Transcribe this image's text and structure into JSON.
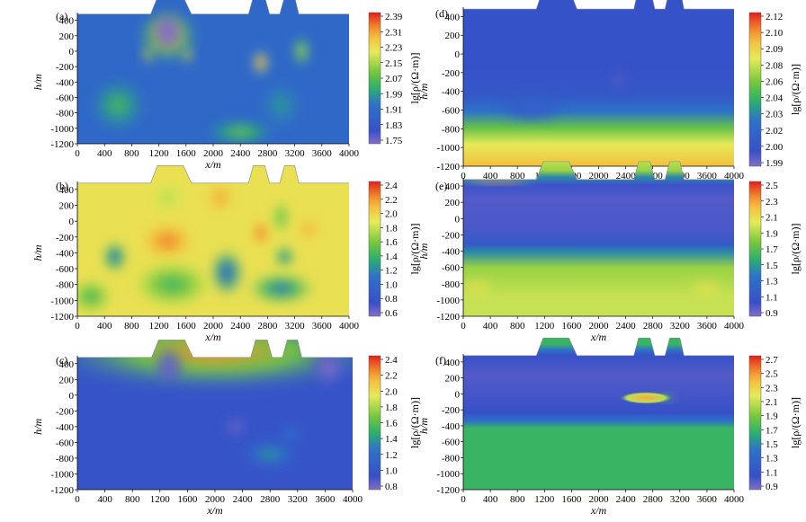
{
  "chart_data": [
    {
      "type": "heatmap",
      "panel_label": "(a)",
      "xlabel": "x/m",
      "ylabel": "h/m",
      "xlim": [
        0,
        4000
      ],
      "ylim": [
        -1200,
        500
      ],
      "xticks": [
        "0",
        "400",
        "800",
        "1200",
        "1600",
        "2000",
        "2400",
        "2800",
        "3200",
        "3600",
        "4000"
      ],
      "yticks": [
        "400",
        "200",
        "0",
        "-200",
        "-400",
        "-600",
        "-800",
        "-1000",
        "-1200"
      ],
      "colorbar_label": "lg[ρ/(Ω·m)]",
      "colorbar_ticks": [
        "2.39",
        "2.31",
        "2.23",
        "2.15",
        "2.07",
        "1.99",
        "1.91",
        "1.83",
        "1.75"
      ],
      "crange": [
        1.75,
        2.39
      ],
      "background": 1.9,
      "terrain": [
        [
          0,
          480
        ],
        [
          1080,
          480
        ],
        [
          1180,
          700
        ],
        [
          1560,
          700
        ],
        [
          1680,
          480
        ],
        [
          2520,
          480
        ],
        [
          2590,
          700
        ],
        [
          2760,
          700
        ],
        [
          2830,
          480
        ],
        [
          2980,
          480
        ],
        [
          3050,
          700
        ],
        [
          3200,
          700
        ],
        [
          3260,
          480
        ],
        [
          4000,
          480
        ]
      ],
      "anomalies": [
        {
          "x": 1330,
          "y": 200,
          "sx": 460,
          "sy": 380,
          "v": 0.38
        },
        {
          "x": 1330,
          "y": 250,
          "sx": 260,
          "sy": 280,
          "v": -0.4
        },
        {
          "x": 1040,
          "y": -40,
          "sx": 90,
          "sy": 140,
          "v": 0.42
        },
        {
          "x": 1620,
          "y": -40,
          "sx": 90,
          "sy": 140,
          "v": 0.42
        },
        {
          "x": 2700,
          "y": -150,
          "sx": 130,
          "sy": 170,
          "v": 0.55
        },
        {
          "x": 3300,
          "y": 0,
          "sx": 140,
          "sy": 220,
          "v": 0.3
        },
        {
          "x": 2400,
          "y": -1050,
          "sx": 550,
          "sy": 180,
          "v": 0.2
        },
        {
          "x": 600,
          "y": -700,
          "sx": 450,
          "sy": 380,
          "v": 0.16
        },
        {
          "x": 3000,
          "y": -700,
          "sx": 350,
          "sy": 350,
          "v": 0.1
        }
      ]
    },
    {
      "type": "heatmap",
      "panel_label": "(b)",
      "xlabel": "x/m",
      "ylabel": "h/m",
      "xlim": [
        0,
        4000
      ],
      "ylim": [
        -1200,
        500
      ],
      "xticks": [
        "0",
        "400",
        "800",
        "1200",
        "1600",
        "2000",
        "2400",
        "2800",
        "3200",
        "3600",
        "4000"
      ],
      "yticks": [
        "400",
        "200",
        "0",
        "-200",
        "-400",
        "-600",
        "-800",
        "-1000",
        "-1200"
      ],
      "colorbar_label": "lg[ρ/(Ω·m)]",
      "colorbar_ticks": [
        "2.4",
        "2.2",
        "2.0",
        "1.8",
        "1.6",
        "1.4",
        "1.2",
        "1.0",
        "0.8",
        "0.6"
      ],
      "crange": [
        0.6,
        2.45
      ],
      "background": 1.95,
      "terrain": [
        [
          0,
          480
        ],
        [
          1080,
          480
        ],
        [
          1180,
          700
        ],
        [
          1560,
          700
        ],
        [
          1680,
          480
        ],
        [
          2520,
          480
        ],
        [
          2590,
          700
        ],
        [
          2760,
          700
        ],
        [
          2830,
          480
        ],
        [
          2980,
          480
        ],
        [
          3050,
          700
        ],
        [
          3200,
          700
        ],
        [
          3260,
          480
        ],
        [
          4000,
          480
        ]
      ],
      "anomalies": [
        {
          "x": 1330,
          "y": -250,
          "sx": 420,
          "sy": 250,
          "v": 0.35
        },
        {
          "x": 1330,
          "y": 300,
          "sx": 280,
          "sy": 230,
          "v": -0.2
        },
        {
          "x": 2100,
          "y": 300,
          "sx": 220,
          "sy": 220,
          "v": 0.25
        },
        {
          "x": 2700,
          "y": -150,
          "sx": 140,
          "sy": 180,
          "v": 0.4
        },
        {
          "x": 3400,
          "y": -100,
          "sx": 200,
          "sy": 180,
          "v": 0.2
        },
        {
          "x": 550,
          "y": -450,
          "sx": 200,
          "sy": 220,
          "v": -1.1
        },
        {
          "x": 2200,
          "y": -650,
          "sx": 280,
          "sy": 330,
          "v": -1.2
        },
        {
          "x": 3050,
          "y": -450,
          "sx": 170,
          "sy": 150,
          "v": -1.0
        },
        {
          "x": 3000,
          "y": -850,
          "sx": 550,
          "sy": 230,
          "v": -0.9
        },
        {
          "x": 3000,
          "y": 50,
          "sx": 150,
          "sy": 250,
          "v": -0.5
        },
        {
          "x": 1400,
          "y": -800,
          "sx": 650,
          "sy": 330,
          "v": -0.55
        },
        {
          "x": 200,
          "y": -950,
          "sx": 350,
          "sy": 250,
          "v": -0.55
        }
      ]
    },
    {
      "type": "heatmap",
      "panel_label": "(c)",
      "xlabel": "x/m",
      "ylabel": "h/m",
      "xlim": [
        0,
        4000
      ],
      "ylim": [
        -1200,
        500
      ],
      "xticks": [
        "0",
        "400",
        "800",
        "1200",
        "1600",
        "2000",
        "2400",
        "2800",
        "3200",
        "3600",
        "4000"
      ],
      "yticks": [
        "400",
        "200",
        "0",
        "-200",
        "-400",
        "-600",
        "-800",
        "-1000",
        "-1200"
      ],
      "colorbar_label": "lg[ρ/(Ω·m)]",
      "colorbar_ticks": [
        "2.4",
        "2.2",
        "2.0",
        "1.8",
        "1.6",
        "1.4",
        "1.2",
        "1.0",
        "0.8"
      ],
      "crange": [
        0.8,
        2.45
      ],
      "background": 1.0,
      "terrain": [
        [
          0,
          480
        ],
        [
          1080,
          480
        ],
        [
          1180,
          700
        ],
        [
          1560,
          700
        ],
        [
          1680,
          480
        ],
        [
          2520,
          480
        ],
        [
          2590,
          700
        ],
        [
          2760,
          700
        ],
        [
          2830,
          480
        ],
        [
          2980,
          480
        ],
        [
          3050,
          700
        ],
        [
          3200,
          700
        ],
        [
          3260,
          480
        ],
        [
          4000,
          480
        ]
      ],
      "anomalies": [
        {
          "x": 2000,
          "y": 550,
          "sx": 2600,
          "sy": 520,
          "v": 1.25
        },
        {
          "x": 1330,
          "y": 350,
          "sx": 220,
          "sy": 260,
          "v": -0.2
        },
        {
          "x": 3650,
          "y": 350,
          "sx": 260,
          "sy": 280,
          "v": -0.25
        },
        {
          "x": 2800,
          "y": -750,
          "sx": 450,
          "sy": 200,
          "v": 0.45
        },
        {
          "x": 3100,
          "y": -500,
          "sx": 200,
          "sy": 150,
          "v": 0.3
        },
        {
          "x": 2300,
          "y": -400,
          "sx": 200,
          "sy": 120,
          "v": -0.2
        }
      ]
    },
    {
      "type": "heatmap",
      "panel_label": "(d)",
      "xlabel": "x/m",
      "ylabel": "h/m",
      "xlim": [
        0,
        4000
      ],
      "ylim": [
        -1200,
        500
      ],
      "xticks": [
        "0",
        "400",
        "800",
        "1200",
        "1600",
        "2000",
        "2400",
        "2800",
        "3200",
        "3600",
        "4000"
      ],
      "yticks": [
        "400",
        "200",
        "0",
        "-200",
        "-400",
        "-600",
        "-800",
        "-1000",
        "-1200"
      ],
      "colorbar_label": "lg[ρ/(Ω·m)]",
      "colorbar_ticks": [
        "2.12",
        "2.10",
        "2.09",
        "2.08",
        "2.06",
        "2.04",
        "2.03",
        "2.02",
        "2.00",
        "1.99"
      ],
      "crange": [
        1.99,
        2.125
      ],
      "background": 2.005,
      "layered": [
        [
          -1200,
          2.1
        ],
        [
          -1000,
          2.085
        ],
        [
          -850,
          2.06
        ],
        [
          -700,
          2.03
        ],
        [
          -550,
          2.01
        ],
        [
          -300,
          2.005
        ],
        [
          500,
          2.005
        ]
      ],
      "terrain": [
        [
          0,
          480
        ],
        [
          1080,
          480
        ],
        [
          1180,
          700
        ],
        [
          1560,
          700
        ],
        [
          1680,
          480
        ],
        [
          2520,
          480
        ],
        [
          2590,
          700
        ],
        [
          2760,
          700
        ],
        [
          2830,
          480
        ],
        [
          2980,
          480
        ],
        [
          3050,
          700
        ],
        [
          3200,
          700
        ],
        [
          3260,
          480
        ],
        [
          4000,
          480
        ]
      ],
      "anomalies": [
        {
          "x": 1000,
          "y": -550,
          "sx": 500,
          "sy": 180,
          "v": 0.015
        },
        {
          "x": 2300,
          "y": -280,
          "sx": 120,
          "sy": 120,
          "v": -0.01
        }
      ]
    },
    {
      "type": "heatmap",
      "panel_label": "(e)",
      "xlabel": "x/m",
      "ylabel": "h/m",
      "xlim": [
        0,
        4000
      ],
      "ylim": [
        -1200,
        500
      ],
      "xticks": [
        "0",
        "400",
        "800",
        "1200",
        "1600",
        "2000",
        "2400",
        "2800",
        "3200",
        "3600",
        "4000"
      ],
      "yticks": [
        "400",
        "200",
        "0",
        "-200",
        "-400",
        "-600",
        "-800",
        "-1000",
        "-1200"
      ],
      "colorbar_label": "lg[ρ/(Ω·m)]",
      "colorbar_ticks": [
        "2.5",
        "2.3",
        "2.1",
        "1.9",
        "1.7",
        "1.5",
        "1.3",
        "1.1",
        "0.9"
      ],
      "crange": [
        0.9,
        2.5
      ],
      "background": 2.0,
      "layered": [
        [
          -1200,
          1.95
        ],
        [
          -1000,
          1.95
        ],
        [
          -700,
          1.85
        ],
        [
          -540,
          1.45
        ],
        [
          -460,
          1.15
        ],
        [
          -300,
          1.02
        ],
        [
          0,
          1.0
        ],
        [
          150,
          1.05
        ],
        [
          230,
          1.45
        ],
        [
          300,
          1.85
        ],
        [
          480,
          2.0
        ],
        [
          500,
          2.0
        ]
      ],
      "terrain": [
        [
          0,
          480
        ],
        [
          1080,
          480
        ],
        [
          1180,
          700
        ],
        [
          1560,
          700
        ],
        [
          1680,
          480
        ],
        [
          2520,
          480
        ],
        [
          2590,
          700
        ],
        [
          2760,
          700
        ],
        [
          2830,
          480
        ],
        [
          2980,
          480
        ],
        [
          3050,
          700
        ],
        [
          3200,
          700
        ],
        [
          3260,
          480
        ],
        [
          4000,
          480
        ]
      ],
      "anomalies": [
        {
          "x": 500,
          "y": 480,
          "sx": 600,
          "sy": 40,
          "v": 0.3
        },
        {
          "x": 3600,
          "y": -850,
          "sx": 250,
          "sy": 80,
          "v": 0.12
        },
        {
          "x": 200,
          "y": -850,
          "sx": 250,
          "sy": 80,
          "v": 0.12
        }
      ]
    },
    {
      "type": "heatmap",
      "panel_label": "(f)",
      "xlabel": "x/m",
      "ylabel": "h/m",
      "xlim": [
        0,
        4000
      ],
      "ylim": [
        -1200,
        500
      ],
      "xticks": [
        "0",
        "400",
        "800",
        "1200",
        "1600",
        "2000",
        "2400",
        "2800",
        "3200",
        "3600",
        "4000"
      ],
      "yticks": [
        "400",
        "200",
        "0",
        "-200",
        "-400",
        "-600",
        "-800",
        "-1000",
        "-1200"
      ],
      "colorbar_label": "lg[ρ/(Ω·m)]",
      "colorbar_ticks": [
        "2.7",
        "2.5",
        "2.3",
        "2.1",
        "1.9",
        "1.7",
        "1.5",
        "1.3",
        "1.1",
        "0.9"
      ],
      "crange": [
        0.9,
        2.8
      ],
      "background": 1.75,
      "layered": [
        [
          -1200,
          1.75
        ],
        [
          -560,
          1.75
        ],
        [
          -480,
          1.45
        ],
        [
          -400,
          1.1
        ],
        [
          0,
          1.02
        ],
        [
          200,
          1.1
        ],
        [
          260,
          1.45
        ],
        [
          320,
          1.75
        ],
        [
          500,
          1.75
        ]
      ],
      "terrain": [
        [
          0,
          480
        ],
        [
          1080,
          480
        ],
        [
          1180,
          700
        ],
        [
          1560,
          700
        ],
        [
          1680,
          480
        ],
        [
          2520,
          480
        ],
        [
          2590,
          700
        ],
        [
          2760,
          700
        ],
        [
          2830,
          480
        ],
        [
          2980,
          480
        ],
        [
          3050,
          700
        ],
        [
          3200,
          700
        ],
        [
          3260,
          480
        ],
        [
          4000,
          480
        ]
      ],
      "anomalies": [
        {
          "x": 2700,
          "y": -50,
          "sx": 380,
          "sy": 75,
          "v": 0.75,
          "flat": true
        },
        {
          "x": 3000,
          "y": -50,
          "sx": 120,
          "sy": 40,
          "v": 0.35
        }
      ]
    }
  ]
}
